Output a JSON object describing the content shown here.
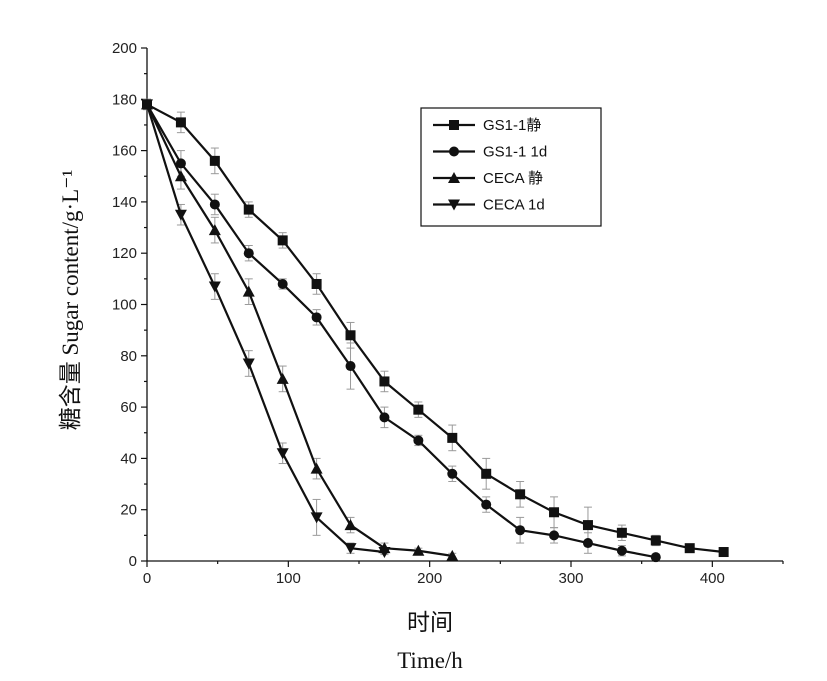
{
  "chart_data": {
    "type": "line",
    "xlabel_cn": "时间",
    "xlabel": "Time/h",
    "ylabel": "糖含量 Sugar content/g·L⁻¹",
    "xlim": [
      0,
      450
    ],
    "ylim": [
      0,
      200
    ],
    "xticks": [
      0,
      100,
      200,
      300,
      400
    ],
    "yticks": [
      0,
      20,
      40,
      60,
      80,
      100,
      120,
      140,
      160,
      180,
      200
    ],
    "legend_position": "top-right",
    "series": [
      {
        "name": "GS1-1静",
        "marker": "square",
        "x": [
          0,
          24,
          48,
          72,
          96,
          120,
          144,
          168,
          192,
          216,
          240,
          264,
          288,
          312,
          336,
          360,
          384,
          408
        ],
        "y": [
          178,
          171,
          156,
          137,
          125,
          108,
          88,
          70,
          59,
          48,
          34,
          26,
          19,
          14,
          11,
          8,
          5,
          3.5
        ],
        "err": [
          2,
          4,
          5,
          3,
          3,
          4,
          5,
          4,
          3,
          5,
          6,
          5,
          6,
          7,
          3,
          2,
          1,
          1
        ]
      },
      {
        "name": "GS1-1 1d",
        "marker": "circle",
        "x": [
          0,
          24,
          48,
          72,
          96,
          120,
          144,
          168,
          192,
          216,
          240,
          264,
          288,
          312,
          336,
          360
        ],
        "y": [
          178,
          155,
          139,
          120,
          108,
          95,
          76,
          56,
          47,
          34,
          22,
          12,
          10,
          7,
          4,
          1.5
        ],
        "err": [
          2,
          5,
          4,
          3,
          2,
          3,
          9,
          4,
          2,
          3,
          3,
          5,
          3,
          4,
          2,
          1
        ]
      },
      {
        "name": "CECA 静",
        "marker": "triangle-up",
        "x": [
          0,
          24,
          48,
          72,
          96,
          120,
          144,
          168,
          192,
          216
        ],
        "y": [
          178,
          150,
          129,
          105,
          71,
          36,
          14,
          5,
          4,
          2
        ],
        "err": [
          2,
          5,
          5,
          5,
          5,
          4,
          3,
          2,
          1,
          1
        ]
      },
      {
        "name": "CECA 1d",
        "marker": "triangle-down",
        "x": [
          0,
          24,
          48,
          72,
          96,
          120,
          144,
          168
        ],
        "y": [
          178,
          135,
          107,
          77,
          42,
          17,
          5,
          3.5
        ],
        "err": [
          2,
          4,
          5,
          5,
          4,
          7,
          2,
          1
        ]
      }
    ]
  }
}
